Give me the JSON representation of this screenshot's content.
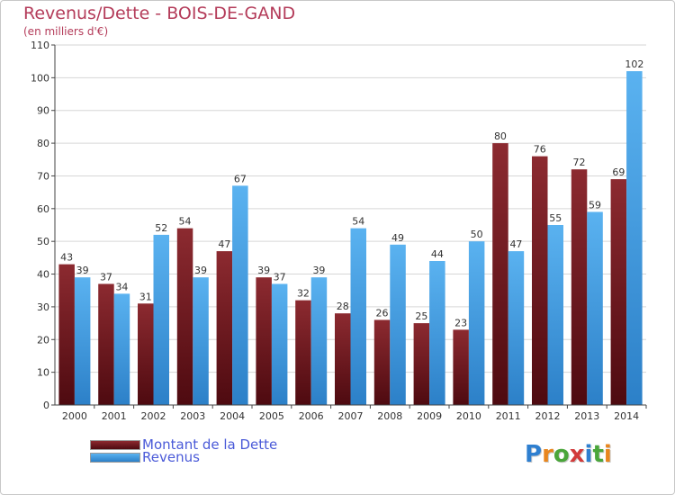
{
  "header": {
    "title": "Revenus/Dette - BOIS-DE-GAND",
    "subtitle": "(en milliers d'€)"
  },
  "colors": {
    "dette": "#7a1a22",
    "revenus": "#4aa3e6",
    "title": "#b43c5a",
    "legend_text": "#4a5ad8"
  },
  "chart_data": {
    "type": "bar",
    "title": "Revenus/Dette - BOIS-DE-GAND",
    "subtitle": "(en milliers d'€)",
    "xlabel": "",
    "ylabel": "",
    "ylim": [
      0,
      110
    ],
    "yticks": [
      0,
      10,
      20,
      30,
      40,
      50,
      60,
      70,
      80,
      90,
      100,
      110
    ],
    "grid": true,
    "legend_position": "bottom-left",
    "categories": [
      "2000",
      "2001",
      "2002",
      "2003",
      "2004",
      "2005",
      "2006",
      "2007",
      "2008",
      "2009",
      "2010",
      "2011",
      "2012",
      "2013",
      "2014"
    ],
    "series": [
      {
        "name": "Montant de la Dette",
        "values": [
          43,
          37,
          31,
          54,
          47,
          39,
          32,
          28,
          26,
          25,
          23,
          80,
          76,
          72,
          69
        ]
      },
      {
        "name": "Revenus",
        "values": [
          39,
          34,
          52,
          39,
          67,
          37,
          39,
          54,
          49,
          44,
          50,
          47,
          55,
          59,
          102
        ]
      }
    ]
  },
  "legend": {
    "items": [
      {
        "label": "Montant de la Dette"
      },
      {
        "label": "Revenus"
      }
    ]
  },
  "logo": {
    "text": "Proxiti"
  }
}
